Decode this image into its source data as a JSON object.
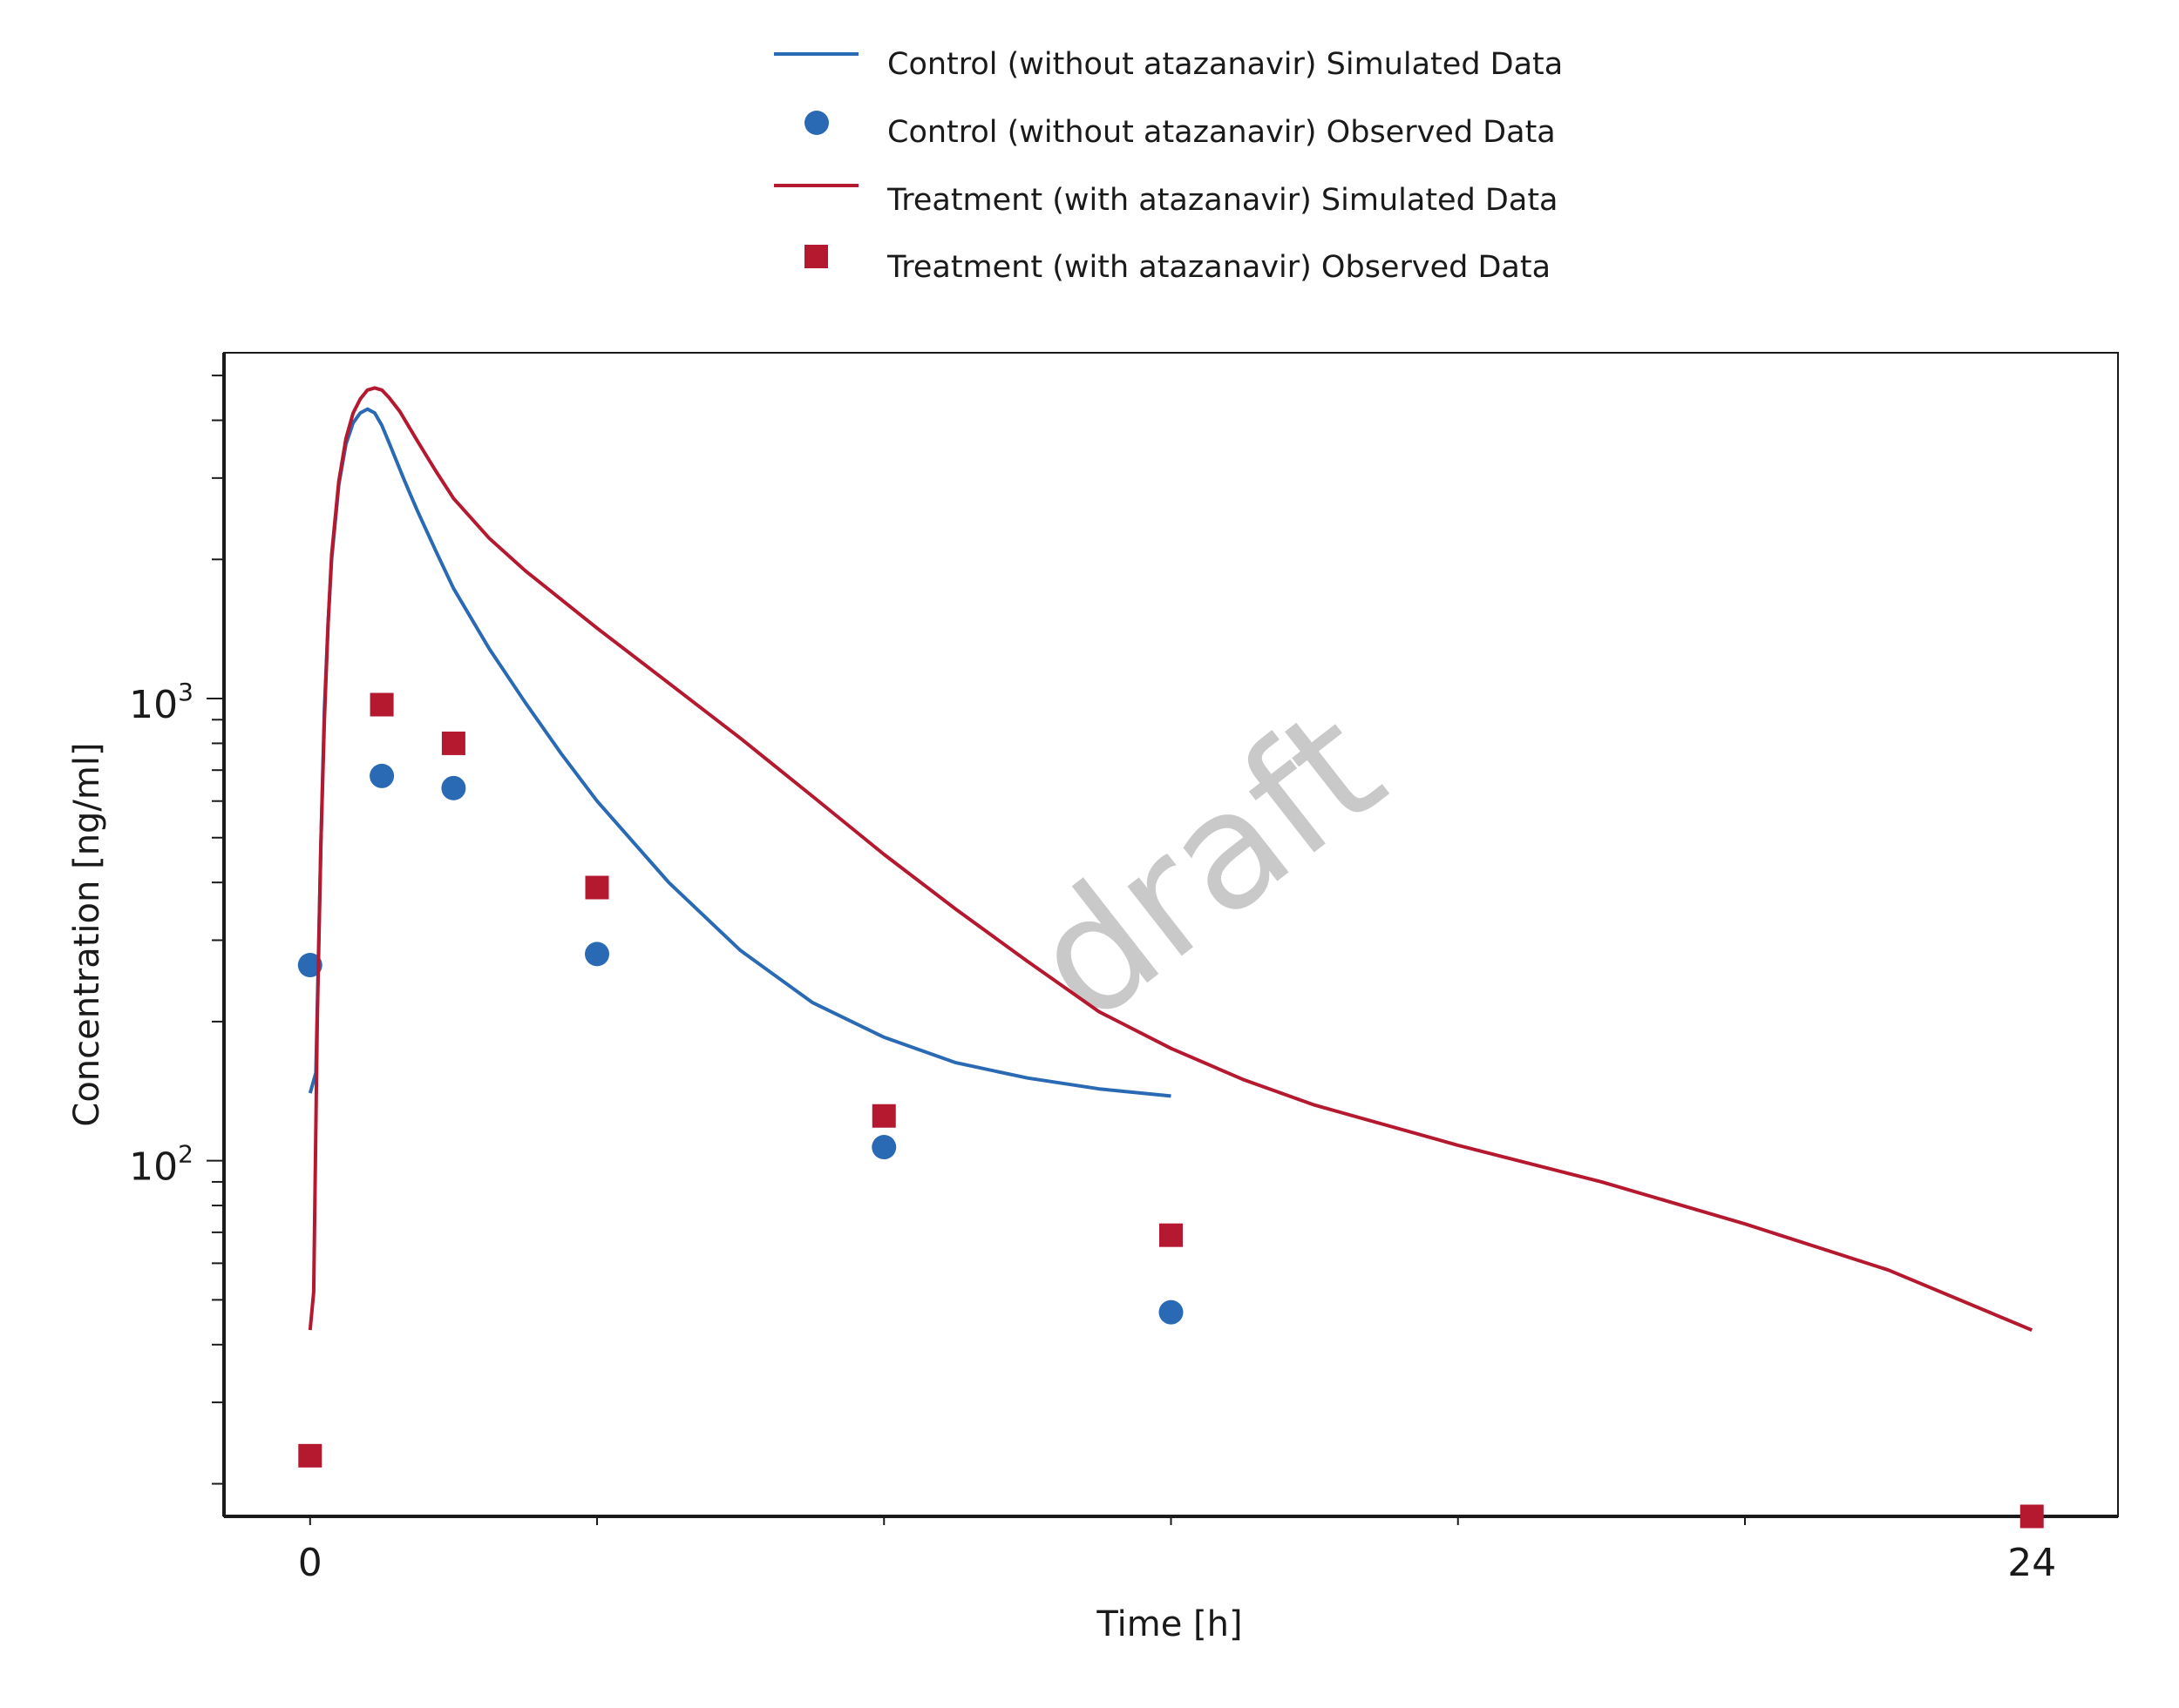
{
  "chart_data": {
    "type": "line",
    "title": "",
    "xlabel": "Time [h]",
    "ylabel": "Concentration [ng/ml]",
    "xlim": [
      -1.2,
      25.2
    ],
    "ylim": [
      17,
      5600
    ],
    "y_scale": "log",
    "x_ticks": [
      0,
      4,
      8,
      12,
      16,
      20,
      24
    ],
    "x_tick_labels": [
      {
        "value": 0,
        "label": "0"
      },
      {
        "value": 24,
        "label": "24"
      }
    ],
    "y_tick_labels": [
      {
        "value": 100,
        "base": "10",
        "exp": "2"
      },
      {
        "value": 1000,
        "base": "10",
        "exp": "3"
      }
    ],
    "grid": false,
    "legend_position": "top-center",
    "watermark": "draft",
    "series": [
      {
        "name": "Control (without atazanavir) Simulated Data",
        "kind": "line",
        "color": "#2a6ab4",
        "x": [
          0,
          0.08,
          0.15,
          0.2,
          0.25,
          0.3,
          0.4,
          0.5,
          0.6,
          0.7,
          0.8,
          0.9,
          1.0,
          1.1,
          1.2,
          1.3,
          1.4,
          1.5,
          1.75,
          2.0,
          2.5,
          3.0,
          3.5,
          4.0,
          5.0,
          6.0,
          7.0,
          8.0,
          9.0,
          10.0,
          11.0,
          12.0
        ],
        "y": [
          140,
          155,
          480,
          950,
          1450,
          2000,
          2900,
          3550,
          3950,
          4150,
          4230,
          4150,
          3900,
          3580,
          3280,
          3000,
          2760,
          2540,
          2090,
          1730,
          1280,
          980,
          760,
          600,
          400,
          285,
          220,
          185,
          163,
          151,
          143,
          138
        ]
      },
      {
        "name": "Control (without atazanavir) Observed Data",
        "kind": "scatter",
        "marker": "circle",
        "color": "#2a6ab4",
        "x": [
          0,
          1,
          2,
          4,
          8,
          12
        ],
        "y": [
          265,
          680,
          640,
          280,
          107,
          47
        ]
      },
      {
        "name": "Treatment (with atazanavir) Simulated Data",
        "kind": "line",
        "color": "#b5192f",
        "x": [
          0,
          0.05,
          0.1,
          0.15,
          0.2,
          0.25,
          0.3,
          0.4,
          0.5,
          0.6,
          0.7,
          0.8,
          0.9,
          1.0,
          1.1,
          1.25,
          1.5,
          1.75,
          2.0,
          2.5,
          3.0,
          4.0,
          5.0,
          6.0,
          7.0,
          8.0,
          9.0,
          10.0,
          11.0,
          12.0,
          13.0,
          14.0,
          16.0,
          18.0,
          20.0,
          22.0,
          24.0
        ],
        "y": [
          43,
          52,
          200,
          480,
          900,
          1450,
          2050,
          2950,
          3650,
          4150,
          4450,
          4650,
          4700,
          4650,
          4480,
          4180,
          3600,
          3110,
          2710,
          2220,
          1890,
          1420,
          1080,
          820,
          615,
          460,
          350,
          270,
          210,
          175,
          150,
          132,
          108,
          90,
          73,
          58,
          43
        ]
      },
      {
        "name": "Treatment (with atazanavir) Observed Data",
        "kind": "scatter",
        "marker": "square",
        "color": "#b5192f",
        "x": [
          0,
          1,
          2,
          4,
          8,
          12,
          24
        ],
        "y": [
          23,
          970,
          800,
          390,
          125,
          69,
          17
        ]
      }
    ]
  }
}
